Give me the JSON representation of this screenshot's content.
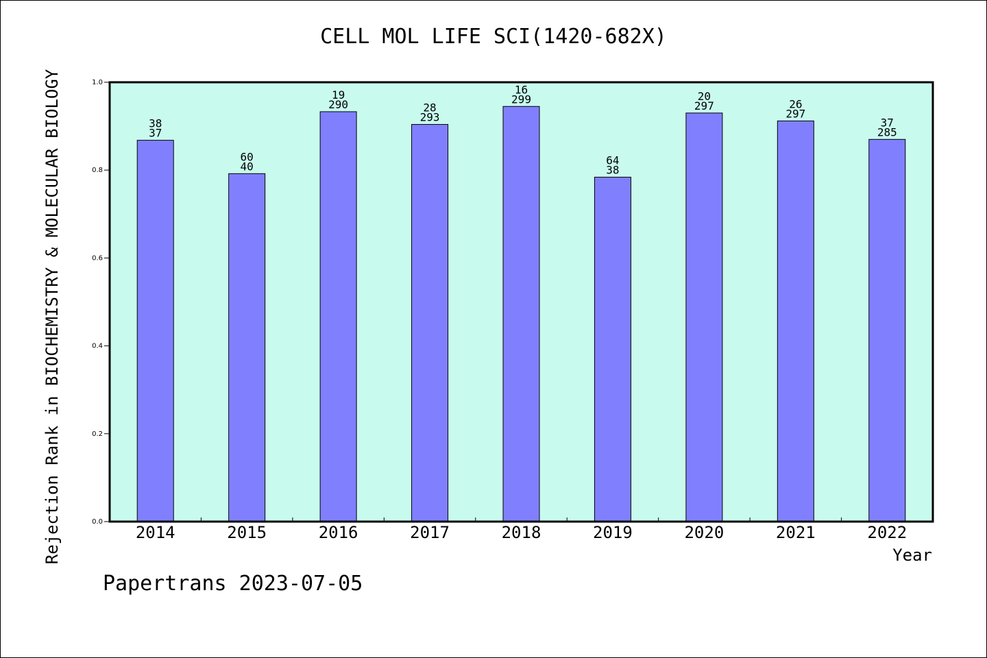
{
  "colors": {
    "plot_background": "#c8fbee",
    "bar_fill": "#8080ff",
    "bar_stroke": "#000000",
    "axis": "#000000"
  },
  "footer": "Papertrans 2023-07-05",
  "chart_data": {
    "type": "bar",
    "title": "CELL MOL LIFE SCI(1420-682X)",
    "xlabel": "Year",
    "ylabel": "Rejection Rank in BIOCHEMISTRY & MOLECULAR BIOLOGY",
    "ylim": [
      0,
      1.0
    ],
    "yticks": [
      "0.0",
      "0.2",
      "0.4",
      "0.6",
      "0.8",
      "1.0"
    ],
    "grid": false,
    "categories": [
      "2014",
      "2015",
      "2016",
      "2017",
      "2018",
      "2019",
      "2020",
      "2021",
      "2022"
    ],
    "values": [
      0.868,
      0.792,
      0.933,
      0.904,
      0.945,
      0.784,
      0.93,
      0.912,
      0.87
    ],
    "labels_top": [
      "38",
      "60",
      "19",
      "28",
      "16",
      "64",
      "20",
      "26",
      "37"
    ],
    "labels_bottom": [
      "37",
      "40",
      "290",
      "293",
      "299",
      "38",
      "297",
      "297",
      "285"
    ]
  }
}
